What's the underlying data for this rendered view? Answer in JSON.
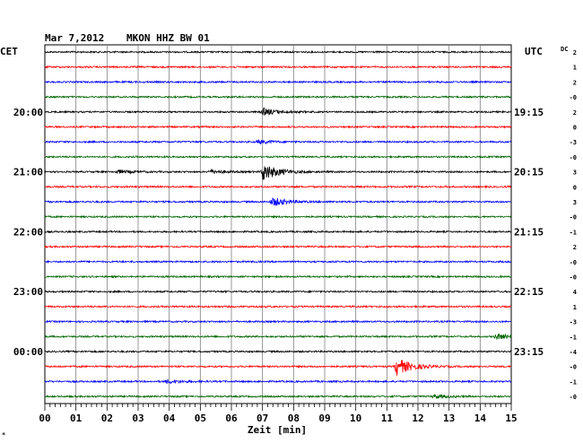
{
  "header": {
    "date": "Mar 7,2012",
    "station": "MKON HHZ BW 01"
  },
  "left_tz": "CET",
  "right_tz": "UTC",
  "dc_label": "DC",
  "xlabel": "Zeit [min]",
  "corner_mark": "*",
  "colors": {
    "black": "#000000",
    "red": "#ff0000",
    "blue": "#0000ff",
    "green": "#006400",
    "grid": "#7f7f7f"
  },
  "chart_data": {
    "type": "line",
    "title": "Mar 7,2012   MKON HHZ BW 01",
    "xlabel": "Zeit [min]",
    "x_ticks": [
      "00",
      "01",
      "02",
      "03",
      "04",
      "05",
      "06",
      "07",
      "08",
      "09",
      "10",
      "11",
      "12",
      "13",
      "14",
      "15"
    ],
    "xlim": [
      0,
      15
    ],
    "row_count": 24,
    "color_cycle": [
      "black",
      "red",
      "blue",
      "green"
    ],
    "left_hour_labels": [
      {
        "row": 4,
        "label": "20:00"
      },
      {
        "row": 8,
        "label": "21:00"
      },
      {
        "row": 12,
        "label": "22:00"
      },
      {
        "row": 16,
        "label": "23:00"
      },
      {
        "row": 20,
        "label": "00:00"
      }
    ],
    "right_hour_labels": [
      {
        "row": 4,
        "label": "19:15"
      },
      {
        "row": 8,
        "label": "20:15"
      },
      {
        "row": 12,
        "label": "21:15"
      },
      {
        "row": 16,
        "label": "22:15"
      },
      {
        "row": 20,
        "label": "23:15"
      }
    ],
    "dc_offsets": [
      "2",
      "1",
      "2",
      "-0",
      "2",
      "0",
      "-3",
      "-0",
      "3",
      "0",
      "3",
      "-0",
      "-1",
      "2",
      "-0",
      "-0",
      "4",
      "1",
      "-3",
      "-1",
      "-4",
      "-0",
      "-1",
      "-0"
    ],
    "events": [
      {
        "row": 4,
        "minute": 7.0,
        "amplitude": 4
      },
      {
        "row": 6,
        "minute": 6.85,
        "amplitude": 2
      },
      {
        "row": 8,
        "minute": 2.3,
        "amplitude": 2
      },
      {
        "row": 8,
        "minute": 5.3,
        "amplitude": 2
      },
      {
        "row": 8,
        "minute": 7.0,
        "amplitude": 10
      },
      {
        "row": 10,
        "minute": 7.3,
        "amplitude": 5
      },
      {
        "row": 19,
        "minute": 14.5,
        "amplitude": 3
      },
      {
        "row": 21,
        "minute": 11.3,
        "amplitude": 10
      },
      {
        "row": 22,
        "minute": 3.9,
        "amplitude": 2
      },
      {
        "row": 23,
        "minute": 12.5,
        "amplitude": 2
      }
    ]
  }
}
